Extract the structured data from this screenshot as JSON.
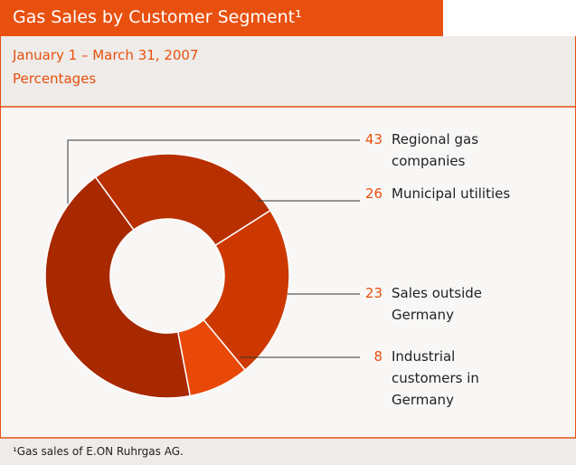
{
  "chart_data": {
    "type": "donut",
    "title": "Gas Sales by Customer Segment¹",
    "subtitle": "January 1 – March 31, 2007",
    "unit_label": "Percentages",
    "footnote": "¹Gas sales of E.ON Ruhrgas AG.",
    "categories": [
      "Regional gas companies",
      "Municipal utilities",
      "Sales outside Germany",
      "Industrial customers in Germany"
    ],
    "values": [
      43,
      26,
      23,
      8
    ],
    "colors": [
      "#a82800",
      "#b93000",
      "#cc3800",
      "#e84808"
    ]
  }
}
